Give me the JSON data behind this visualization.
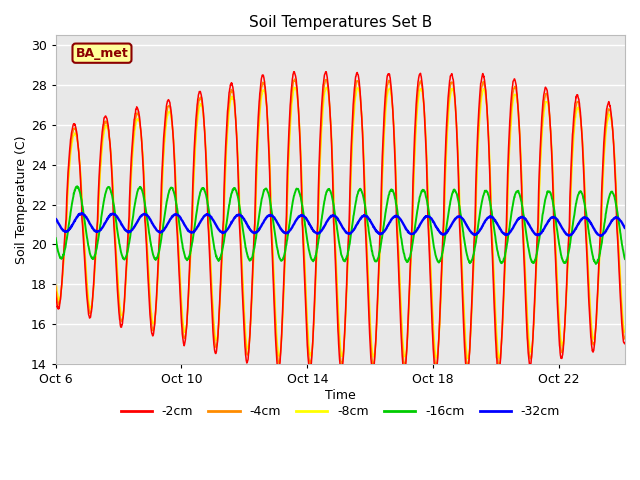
{
  "title": "Soil Temperatures Set B",
  "xlabel": "Time",
  "ylabel": "Soil Temperature (C)",
  "ylim": [
    14,
    30.5
  ],
  "yticks": [
    14,
    16,
    18,
    20,
    22,
    24,
    26,
    28,
    30
  ],
  "annotation_text": "BA_met",
  "annotation_color": "#8B0000",
  "annotation_bg": "#FFFF99",
  "colors": {
    "-2cm": "#FF0000",
    "-4cm": "#FF8C00",
    "-8cm": "#FFFF00",
    "-16cm": "#00CC00",
    "-32cm": "#0000FF"
  },
  "background_plot": "#E8E8E8",
  "background_fig": "#FFFFFF",
  "grid_color": "#FFFFFF",
  "start_day": 6.0,
  "end_day": 24.1,
  "n_points": 1800
}
